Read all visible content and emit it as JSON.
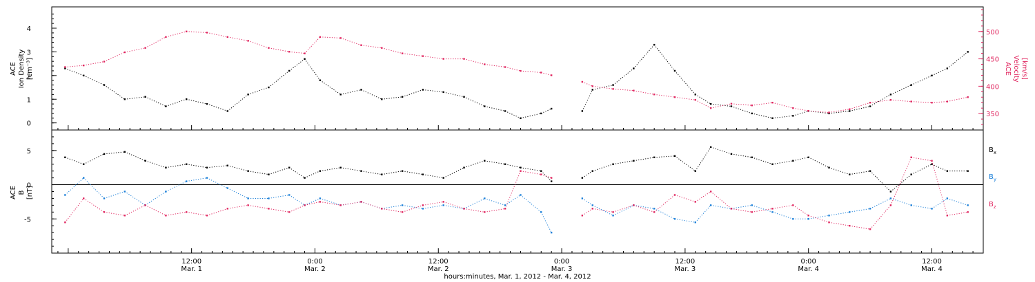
{
  "colors": {
    "black": "#000000",
    "velocity": "#e0245e",
    "by": "#1a7fd8",
    "bz": "#e0245e"
  },
  "chart_data": [
    {
      "type": "scatter",
      "panel": "top",
      "ylabel_left": [
        "ACE",
        "Ion Density",
        "[cm⁻³]"
      ],
      "ylabel_right": [
        "ACE",
        "Velocity",
        "[km/s]"
      ],
      "left_ticks": [
        "0",
        "1",
        "2",
        "3",
        "4"
      ],
      "left_ylim": [
        -0.3,
        4.9
      ],
      "right_ticks": [
        "350",
        "400",
        "450",
        "500"
      ],
      "right_ylim": [
        320,
        545
      ],
      "grid": false,
      "series": [
        {
          "name": "",
          "axis": "left",
          "color": "#000000",
          "x": [
            -0.3,
            1.5,
            3.5,
            5.5,
            7.5,
            9.5,
            11.5,
            13.5,
            15.5,
            17.5,
            19.5,
            21.5,
            23.0,
            24.5,
            26.5,
            28.5,
            30.5,
            32.5,
            34.5,
            36.5,
            38.5,
            40.5,
            42.5,
            44.0,
            46.0,
            47.0,
            50.0,
            51.0,
            53.0,
            55.0,
            57.0,
            59.0,
            61.0,
            62.5,
            64.5,
            66.5,
            68.5,
            70.5,
            72.0,
            74.0,
            76.0,
            78.0,
            80.0,
            82.0,
            84.0,
            85.5,
            87.5
          ],
          "y": [
            2.3,
            2.0,
            1.6,
            1.0,
            1.1,
            0.7,
            1.0,
            0.8,
            0.5,
            1.2,
            1.5,
            2.2,
            2.7,
            1.8,
            1.2,
            1.4,
            1.0,
            1.1,
            1.4,
            1.3,
            1.1,
            0.7,
            0.5,
            0.2,
            0.4,
            0.6,
            0.5,
            1.4,
            1.6,
            2.3,
            3.3,
            2.2,
            1.2,
            0.8,
            0.7,
            0.4,
            0.2,
            0.3,
            0.5,
            0.4,
            0.5,
            0.7,
            1.2,
            1.6,
            2.0,
            2.3,
            3.0
          ]
        },
        {
          "name": "",
          "axis": "right",
          "color": "#e0245e",
          "x": [
            -0.3,
            1.5,
            3.5,
            5.5,
            7.5,
            9.5,
            11.5,
            13.5,
            15.5,
            17.5,
            19.5,
            21.5,
            23.0,
            24.5,
            26.5,
            28.5,
            30.5,
            32.5,
            34.5,
            36.5,
            38.5,
            40.5,
            42.5,
            44.0,
            46.0,
            47.0,
            50.0,
            51.0,
            53.0,
            55.0,
            57.0,
            59.0,
            61.0,
            62.5,
            64.5,
            66.5,
            68.5,
            70.5,
            72.0,
            74.0,
            76.0,
            78.0,
            80.0,
            82.0,
            84.0,
            85.5,
            87.5
          ],
          "y": [
            435,
            438,
            445,
            462,
            470,
            490,
            500,
            498,
            490,
            483,
            470,
            463,
            460,
            490,
            488,
            475,
            470,
            460,
            455,
            450,
            450,
            440,
            435,
            428,
            425,
            420,
            408,
            400,
            395,
            392,
            385,
            380,
            375,
            360,
            368,
            365,
            370,
            360,
            355,
            352,
            358,
            370,
            375,
            372,
            370,
            372,
            380
          ]
        }
      ]
    },
    {
      "type": "scatter",
      "panel": "bottom",
      "ylabel_left": [
        "ACE",
        "B",
        "[nT]"
      ],
      "left_ticks": [
        "-5",
        "0",
        "5"
      ],
      "ylim": [
        -10.0,
        8.0
      ],
      "grid": false,
      "zero_line": true,
      "legend_placement": "right",
      "x_ticks": [
        "12:00",
        "0:00",
        "12:00",
        "0:00",
        "12:00",
        "0:00",
        "12:00"
      ],
      "x_tick_hours": [
        12,
        24,
        36,
        48,
        60,
        72,
        84
      ],
      "x_date_labels": [
        "Mar. 1",
        "Mar. 2",
        "Mar. 2",
        "Mar. 3",
        "Mar. 3",
        "Mar. 4",
        "Mar. 4"
      ],
      "xlim": [
        -1.6,
        89.0
      ],
      "xlabel": "hours:minutes, Mar. 1, 2012 - Mar. 4, 2012",
      "series": [
        {
          "name": "Bx",
          "label": "B",
          "subscript": "x",
          "color": "#000000",
          "x": [
            -0.3,
            1.5,
            3.5,
            5.5,
            7.5,
            9.5,
            11.5,
            13.5,
            15.5,
            17.5,
            19.5,
            21.5,
            23.0,
            24.5,
            26.5,
            28.5,
            30.5,
            32.5,
            34.5,
            36.5,
            38.5,
            40.5,
            42.5,
            44.0,
            46.0,
            47.0,
            50.0,
            51.0,
            53.0,
            55.0,
            57.0,
            59.0,
            61.0,
            62.5,
            64.5,
            66.5,
            68.5,
            70.5,
            72.0,
            74.0,
            76.0,
            78.0,
            80.0,
            82.0,
            84.0,
            85.5,
            87.5
          ],
          "y": [
            4.0,
            3.0,
            4.5,
            4.8,
            3.5,
            2.5,
            3.0,
            2.5,
            2.8,
            2.0,
            1.5,
            2.5,
            1.0,
            2.0,
            2.5,
            2.0,
            1.5,
            2.0,
            1.5,
            1.0,
            2.5,
            3.5,
            3.0,
            2.5,
            2.0,
            0.5,
            1.0,
            2.0,
            3.0,
            3.5,
            4.0,
            4.2,
            2.0,
            5.5,
            4.5,
            4.0,
            3.0,
            3.5,
            4.0,
            2.5,
            1.5,
            2.0,
            -1.0,
            1.5,
            3.0,
            2.0,
            2.0
          ]
        },
        {
          "name": "By",
          "label": "B",
          "subscript": "y",
          "color": "#1a7fd8",
          "x": [
            -0.3,
            1.5,
            3.5,
            5.5,
            7.5,
            9.5,
            11.5,
            13.5,
            15.5,
            17.5,
            19.5,
            21.5,
            23.0,
            24.5,
            26.5,
            28.5,
            30.5,
            32.5,
            34.5,
            36.5,
            38.5,
            40.5,
            42.5,
            44.0,
            46.0,
            47.0,
            50.0,
            51.0,
            53.0,
            55.0,
            57.0,
            59.0,
            61.0,
            62.5,
            64.5,
            66.5,
            68.5,
            70.5,
            72.0,
            74.0,
            76.0,
            78.0,
            80.0,
            82.0,
            84.0,
            85.5,
            87.5
          ],
          "y": [
            -1.5,
            1.0,
            -2.0,
            -1.0,
            -3.0,
            -1.0,
            0.5,
            1.0,
            -0.5,
            -2.0,
            -2.0,
            -1.5,
            -3.0,
            -2.0,
            -3.0,
            -2.5,
            -3.5,
            -3.0,
            -3.5,
            -3.0,
            -3.5,
            -2.0,
            -3.0,
            -1.5,
            -4.0,
            -7.0,
            -2.0,
            -3.0,
            -4.5,
            -3.0,
            -3.5,
            -5.0,
            -5.5,
            -3.0,
            -3.5,
            -3.0,
            -4.0,
            -5.0,
            -5.0,
            -4.5,
            -4.0,
            -3.5,
            -2.0,
            -3.0,
            -3.5,
            -2.0,
            -3.0
          ]
        },
        {
          "name": "Bz",
          "label": "B",
          "subscript": "z",
          "color": "#e0245e",
          "x": [
            -0.3,
            1.5,
            3.5,
            5.5,
            7.5,
            9.5,
            11.5,
            13.5,
            15.5,
            17.5,
            19.5,
            21.5,
            23.0,
            24.5,
            26.5,
            28.5,
            30.5,
            32.5,
            34.5,
            36.5,
            38.5,
            40.5,
            42.5,
            44.0,
            46.0,
            47.0,
            50.0,
            51.0,
            53.0,
            55.0,
            57.0,
            59.0,
            61.0,
            62.5,
            64.5,
            66.5,
            68.5,
            70.5,
            72.0,
            74.0,
            76.0,
            78.0,
            80.0,
            82.0,
            84.0,
            85.5,
            87.5
          ],
          "y": [
            -5.5,
            -2.0,
            -4.0,
            -4.5,
            -3.0,
            -4.5,
            -4.0,
            -4.5,
            -3.5,
            -3.0,
            -3.5,
            -4.0,
            -3.0,
            -2.5,
            -3.0,
            -2.5,
            -3.5,
            -4.0,
            -3.0,
            -2.5,
            -3.5,
            -4.0,
            -3.5,
            2.0,
            1.5,
            1.0,
            -4.5,
            -3.5,
            -4.0,
            -3.0,
            -4.0,
            -1.5,
            -2.5,
            -1.0,
            -3.5,
            -4.0,
            -3.5,
            -3.0,
            -4.5,
            -5.5,
            -6.0,
            -6.5,
            -3.0,
            4.0,
            3.5,
            -4.5,
            -4.0
          ]
        }
      ]
    }
  ]
}
